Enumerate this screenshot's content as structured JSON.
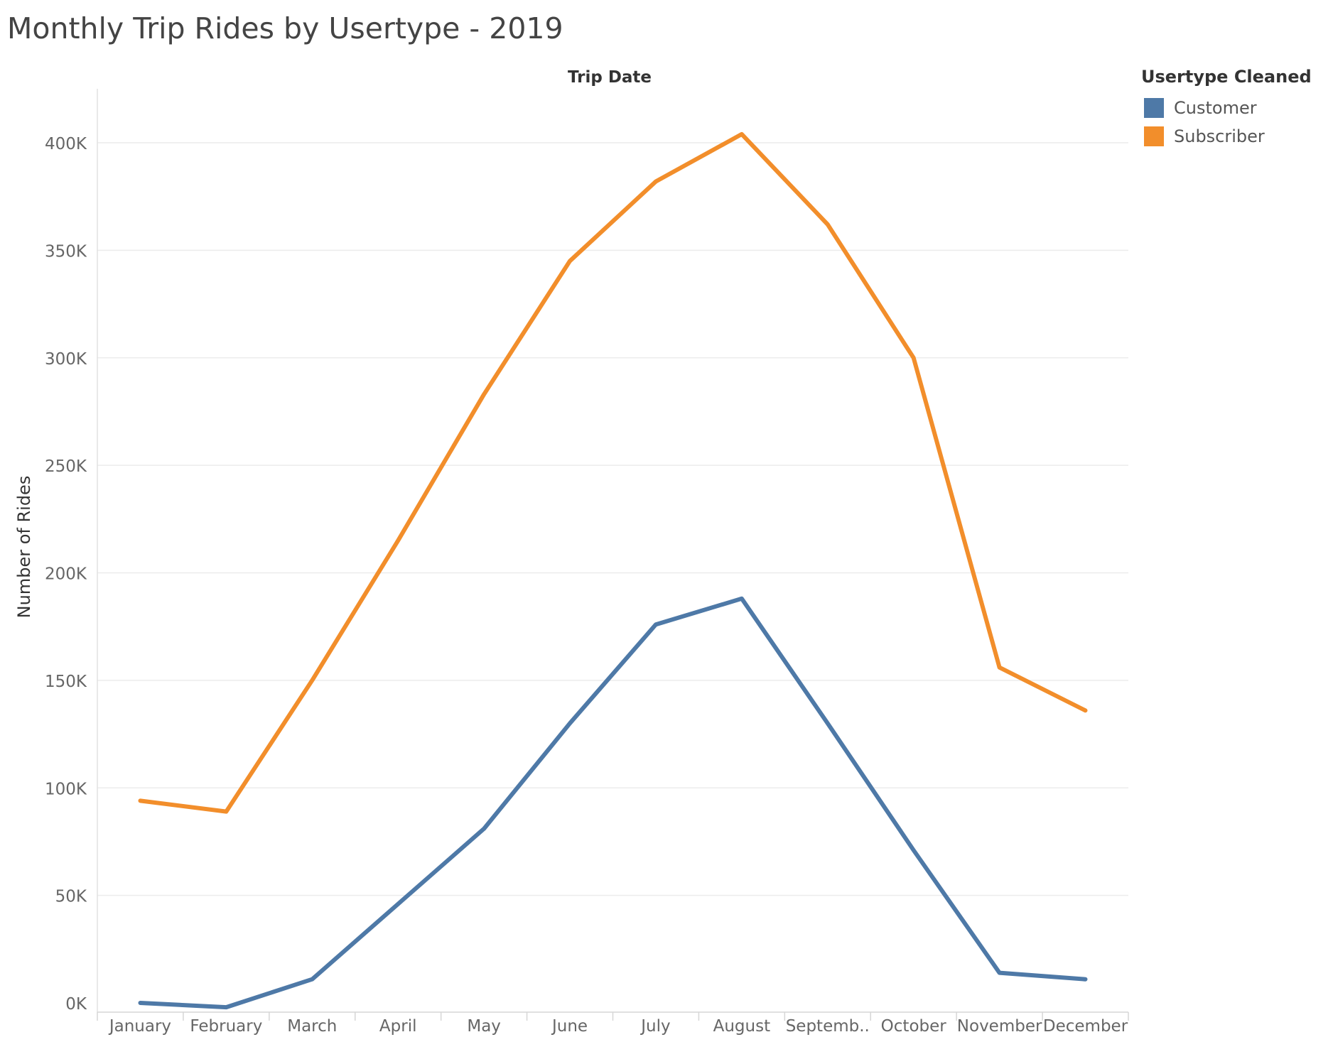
{
  "chart_data": {
    "type": "line",
    "title": "Monthly Trip Rides by Usertype - 2019",
    "column_header": "Trip Date",
    "xlabel": "",
    "ylabel": "Number of Rides",
    "categories": [
      "January",
      "February",
      "March",
      "April",
      "May",
      "June",
      "July",
      "August",
      "Septemb..",
      "October",
      "November",
      "December"
    ],
    "series": [
      {
        "name": "Customer",
        "color": "#4e79a7",
        "values": [
          0,
          -2000,
          11000,
          46000,
          81000,
          130000,
          176000,
          188000,
          130000,
          71000,
          14000,
          11000
        ]
      },
      {
        "name": "Subscriber",
        "color": "#f28e2b",
        "values": [
          94000,
          89000,
          150000,
          215000,
          283000,
          345000,
          382000,
          404000,
          362000,
          300000,
          156000,
          136000
        ]
      }
    ],
    "yticks": [
      {
        "value": 0,
        "label": "0K"
      },
      {
        "value": 50000,
        "label": "50K"
      },
      {
        "value": 100000,
        "label": "100K"
      },
      {
        "value": 150000,
        "label": "150K"
      },
      {
        "value": 200000,
        "label": "200K"
      },
      {
        "value": 250000,
        "label": "250K"
      },
      {
        "value": 300000,
        "label": "300K"
      },
      {
        "value": 350000,
        "label": "350K"
      },
      {
        "value": 400000,
        "label": "400K"
      }
    ],
    "ylim": [
      -3000,
      425000
    ],
    "grid": true,
    "legend": {
      "title": "Usertype Cleaned",
      "placement": "top-right"
    }
  }
}
